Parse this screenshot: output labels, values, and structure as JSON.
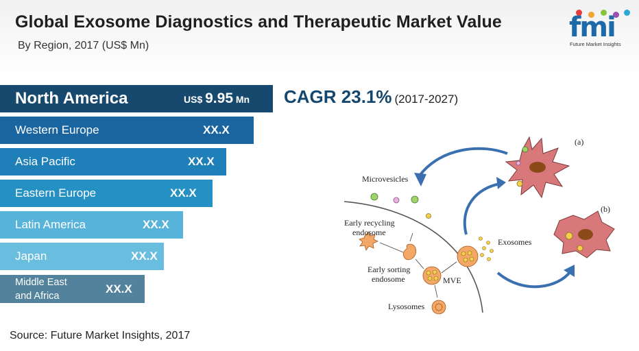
{
  "header": {
    "title": "Global Exosome Diagnostics and Therapeutic Market Value",
    "subtitle": "By Region, 2017 (US$ Mn)"
  },
  "logo": {
    "wordmark": "fmi",
    "tagline": "Future Market Insights"
  },
  "colors": {
    "title": "#1f1f1f",
    "cagr": "#14476f",
    "logo_blue": "#1e6aa8",
    "logo_dots": [
      "#e63b3b",
      "#f2a531",
      "#86c440",
      "#9b4fb1",
      "#2aa8d8"
    ]
  },
  "chart_data": {
    "type": "bar",
    "orientation": "horizontal",
    "title": "Global Exosome Diagnostics and Therapeutic Market Value",
    "subtitle": "By Region, 2017 (US$ Mn)",
    "categories": [
      "North America",
      "Western Europe",
      "Asia Pacific",
      "Eastern Europe",
      "Latin America",
      "Japan",
      "Middle East and Africa"
    ],
    "category_lines": [
      [
        "North America"
      ],
      [
        "Western Europe"
      ],
      [
        "Asia Pacific"
      ],
      [
        "Eastern Europe"
      ],
      [
        "Latin America"
      ],
      [
        "Japan"
      ],
      [
        "Middle East",
        "and Africa"
      ]
    ],
    "value_labels": [
      "9.95",
      "XX.X",
      "XX.X",
      "XX.X",
      "XX.X",
      "XX.X",
      "XX.X"
    ],
    "values": [
      9.95,
      null,
      null,
      null,
      null,
      null,
      null
    ],
    "relative_length": [
      1.0,
      0.93,
      0.83,
      0.78,
      0.67,
      0.6,
      0.53
    ],
    "bar_colors": [
      "#17496f",
      "#1a64a0",
      "#1f7fb8",
      "#2590c4",
      "#58b3da",
      "#69bedf",
      "#52829c"
    ],
    "value_unit_prefix": "US$",
    "value_unit_suffix": "Mn",
    "cagr": {
      "label": "CAGR 23.1%",
      "period": "(2017-2027)"
    }
  },
  "diagram": {
    "labels": {
      "microvesicles": "Microvesicles",
      "early_recycling": "Early recycling",
      "endosome_1": "endosome",
      "early_sorting": "Early sorting",
      "endosome_2": "endosome",
      "mve": "MVE",
      "exosomes": "Exosomes",
      "lysosomes": "Lysosomes",
      "panel_a": "(a)",
      "panel_b": "(b)"
    }
  },
  "footer": {
    "source": "Source: Future Market Insights, 2017"
  }
}
